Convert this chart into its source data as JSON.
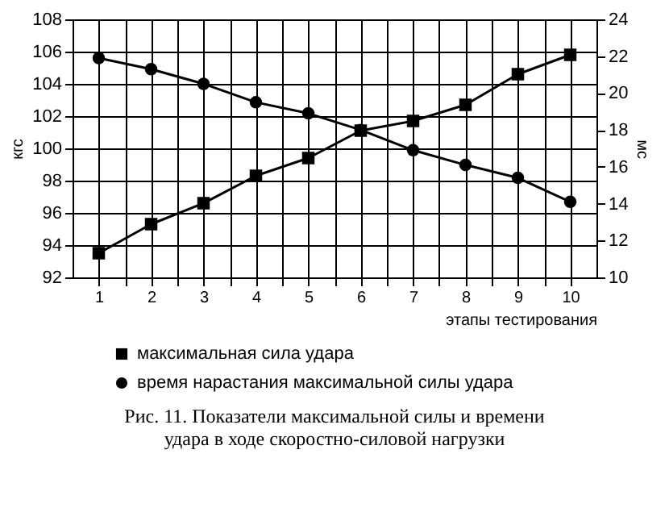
{
  "chart_data": {
    "type": "line",
    "title": "Рис. 11. Показатели максимальной силы и времени удара в ходе скоростно-силовой нагрузки",
    "x": [
      1,
      2,
      3,
      4,
      5,
      6,
      7,
      8,
      9,
      10
    ],
    "xlabel": "этапы тестирования",
    "ylabel": "кгс",
    "y2label": "мс",
    "xlim": [
      0.5,
      10.5
    ],
    "xticks": [
      1,
      {
        "value": 1.5,
        "label": null
      },
      2,
      {
        "value": 2.5,
        "label": null
      },
      3,
      {
        "value": 3.5,
        "label": null
      },
      4,
      {
        "value": 4.5,
        "label": null
      },
      5,
      {
        "value": 5.5,
        "label": null
      },
      6,
      {
        "value": 6.5,
        "label": null
      },
      7,
      {
        "value": 7.5,
        "label": null
      },
      8,
      {
        "value": 8.5,
        "label": null
      },
      9,
      {
        "value": 9.5,
        "label": null
      },
      10
    ],
    "ylim": [
      92,
      108
    ],
    "yticks": [
      92,
      94,
      96,
      98,
      100,
      102,
      104,
      106,
      108
    ],
    "y2lim": [
      10,
      24
    ],
    "y2ticks": [
      10,
      12,
      14,
      16,
      18,
      20,
      22,
      24
    ],
    "grid": true,
    "legend": "bottom left",
    "line_style": "solid",
    "series": [
      {
        "name": "максимальная сила удара",
        "color": "#000000",
        "marker": "square",
        "values": [
          93.5,
          95.3,
          96.6,
          98.3,
          99.4,
          101.1,
          101.7,
          102.7,
          104.6,
          105.8
        ]
      },
      {
        "name": "время нарастания максимальной силы удара",
        "color": "#000000",
        "marker": "circle",
        "axis": "y2",
        "values": [
          21.9,
          21.3,
          20.5,
          19.5,
          18.9,
          18.0,
          16.9,
          16.1,
          15.4,
          14.1
        ]
      }
    ]
  }
}
